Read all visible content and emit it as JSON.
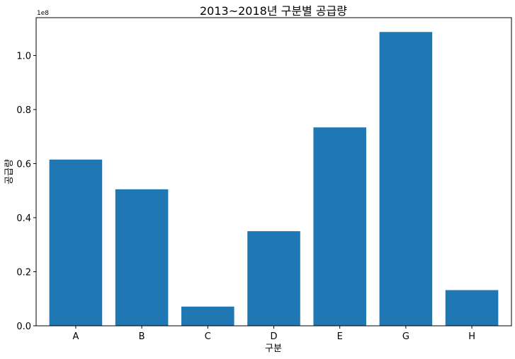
{
  "chart_data": {
    "type": "bar",
    "title": "2013~2018년 구분별 공급량",
    "xlabel": "구분",
    "ylabel": "공급량",
    "y_multiplier_label": "1e8",
    "categories": [
      "A",
      "B",
      "C",
      "D",
      "E",
      "G",
      "H"
    ],
    "values": [
      61500000,
      50500000,
      7100000,
      35000000,
      73400000,
      108700000,
      13200000
    ],
    "ylim": [
      0,
      114000000
    ],
    "y_ticks": [
      0,
      20000000,
      40000000,
      60000000,
      80000000,
      100000000
    ],
    "y_tick_labels": [
      "0.0",
      "0.2",
      "0.4",
      "0.6",
      "0.8",
      "1.0"
    ],
    "grid": false,
    "legend": "none",
    "bar_color": "#1f77b4"
  }
}
